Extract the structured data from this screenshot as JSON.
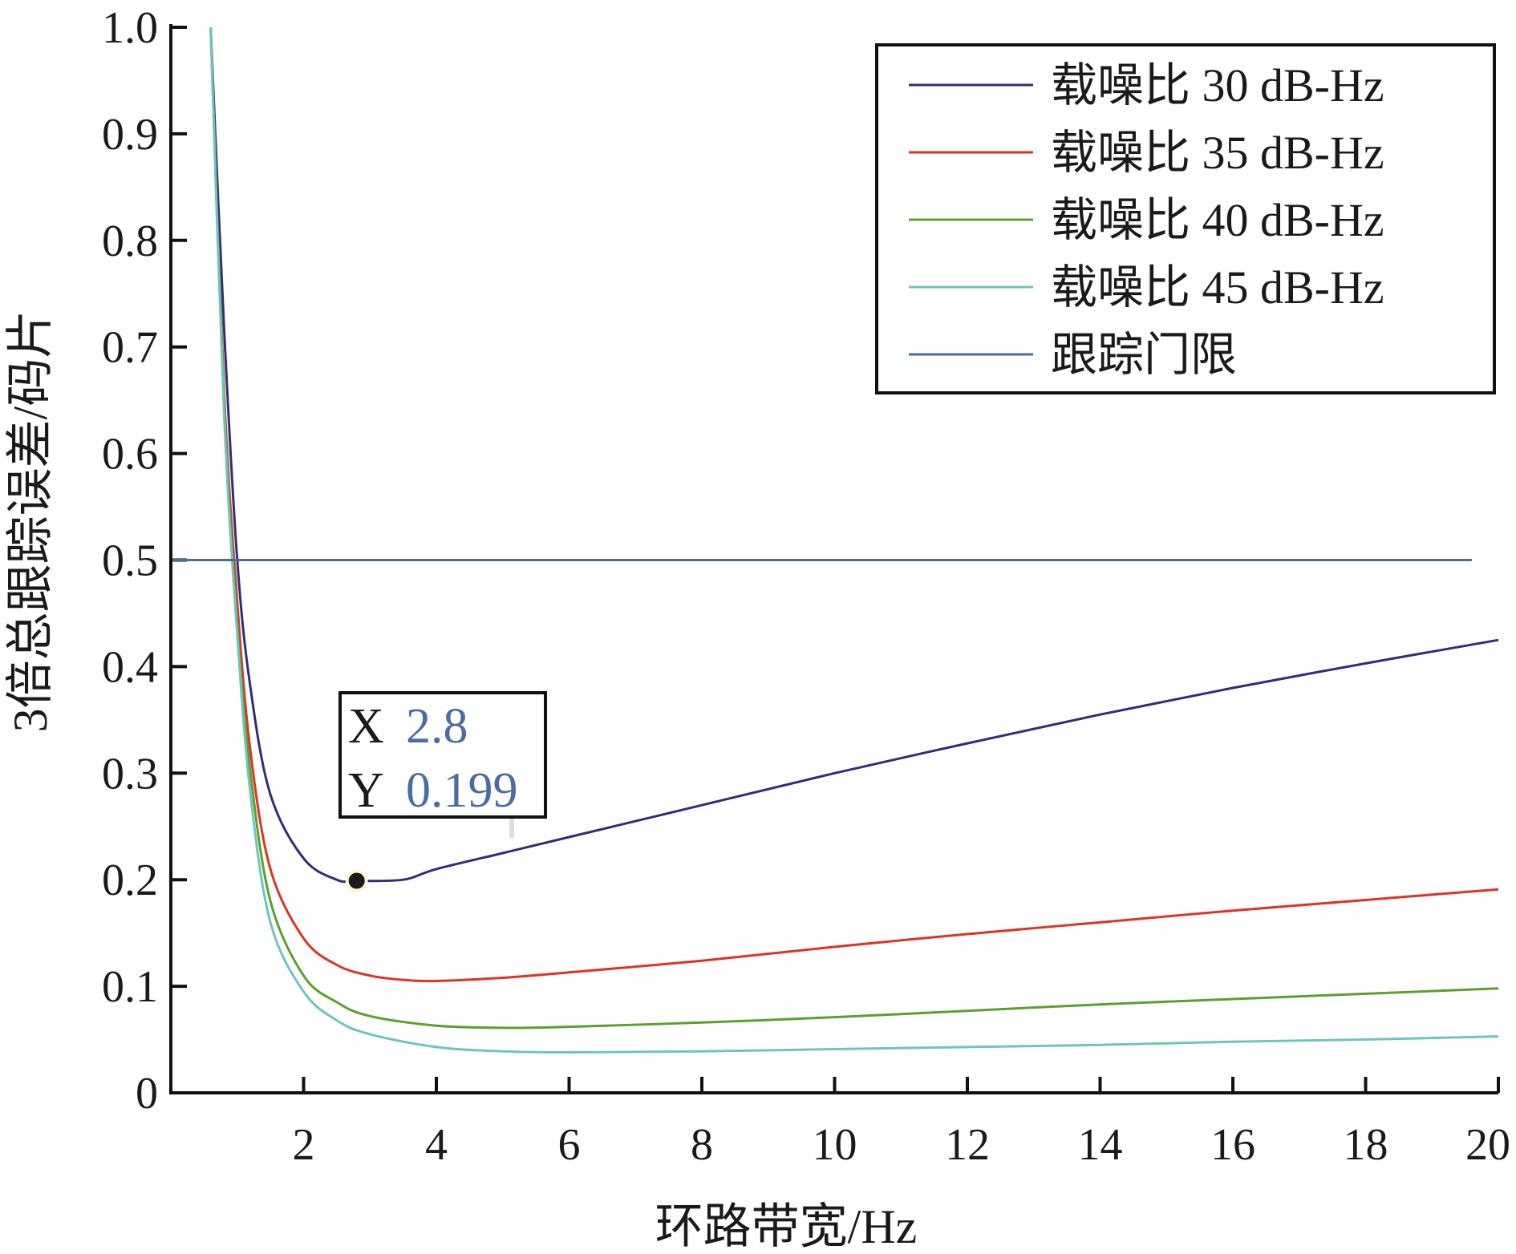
{
  "chart_data": {
    "type": "line",
    "xlabel": "环路带宽/Hz",
    "ylabel": "3倍总跟踪误差/码片",
    "xlim": [
      0,
      20
    ],
    "ylim": [
      0,
      1.0
    ],
    "x_ticks": [
      2,
      4,
      6,
      8,
      10,
      12,
      14,
      16,
      18,
      20
    ],
    "y_ticks": [
      0,
      0.1,
      0.2,
      0.3,
      0.4,
      0.5,
      0.6,
      0.7,
      0.8,
      0.9,
      1.0
    ],
    "y_tick_labels": [
      "0",
      "0.1",
      "0.2",
      "0.3",
      "0.4",
      "0.5",
      "0.6",
      "0.7",
      "0.8",
      "0.9",
      "1.0"
    ],
    "grid": false,
    "legend_position": "top-right",
    "series": [
      {
        "name": "载噪比 30 dB-Hz",
        "color": "#2e2e7a",
        "x": [
          0.6,
          0.8,
          1.0,
          1.2,
          1.5,
          2.0,
          2.5,
          2.8,
          3.5,
          4,
          5,
          6,
          8,
          10,
          12,
          14,
          16,
          18,
          20
        ],
        "y": [
          1.0,
          0.72,
          0.5,
          0.38,
          0.28,
          0.22,
          0.2,
          0.199,
          0.2,
          0.21,
          0.225,
          0.24,
          0.27,
          0.3,
          0.328,
          0.355,
          0.38,
          0.403,
          0.425
        ]
      },
      {
        "name": "载噪比 35 dB-Hz",
        "color": "#e03222",
        "x": [
          0.6,
          0.8,
          1.0,
          1.2,
          1.5,
          2.0,
          2.5,
          3.0,
          3.5,
          4,
          5,
          6,
          8,
          10,
          12,
          14,
          16,
          18,
          20
        ],
        "y": [
          1.0,
          0.66,
          0.46,
          0.32,
          0.21,
          0.145,
          0.12,
          0.11,
          0.106,
          0.105,
          0.108,
          0.113,
          0.124,
          0.137,
          0.149,
          0.16,
          0.171,
          0.181,
          0.191
        ]
      },
      {
        "name": "载噪比 40 dB-Hz",
        "color": "#5aa02c",
        "x": [
          0.6,
          0.8,
          1.0,
          1.2,
          1.5,
          2.0,
          2.5,
          3.0,
          4,
          5,
          6,
          8,
          10,
          12,
          14,
          16,
          18,
          20
        ],
        "y": [
          1.0,
          0.65,
          0.44,
          0.3,
          0.18,
          0.11,
          0.085,
          0.072,
          0.063,
          0.061,
          0.062,
          0.066,
          0.071,
          0.077,
          0.083,
          0.088,
          0.093,
          0.098
        ]
      },
      {
        "name": "载噪比 45 dB-Hz",
        "color": "#6cc6c0",
        "x": [
          0.6,
          0.8,
          1.0,
          1.2,
          1.5,
          2.0,
          2.5,
          3.0,
          4,
          5,
          6,
          8,
          10,
          12,
          14,
          16,
          18,
          20
        ],
        "y": [
          1.0,
          0.64,
          0.43,
          0.28,
          0.16,
          0.095,
          0.068,
          0.055,
          0.043,
          0.039,
          0.038,
          0.039,
          0.041,
          0.043,
          0.045,
          0.048,
          0.05,
          0.053
        ]
      },
      {
        "name": "跟踪门限",
        "color": "#4a6aa8",
        "x": [
          0,
          19.6
        ],
        "y": [
          0.5,
          0.5
        ]
      }
    ],
    "annotation": {
      "point": {
        "x": 2.8,
        "y": 0.199
      },
      "x_key": "X",
      "y_key": "Y",
      "x_text": "2.8",
      "y_text": "0.199",
      "value_color": "#4a6aa8"
    }
  }
}
